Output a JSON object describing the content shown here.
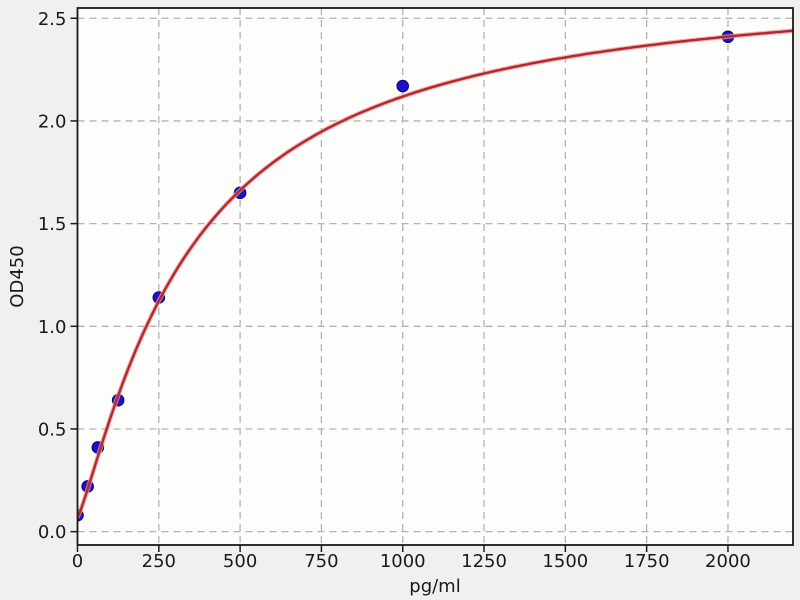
{
  "figure": {
    "background_color": "#f0f0ee",
    "plot_background_color": "#fdfdfc",
    "grid_color": "#b3b3b3",
    "spine_color": "#1a1a1a",
    "text_color": "#1a1a1a"
  },
  "chart_data": {
    "type": "scatter",
    "title": "",
    "xlabel": "pg/ml",
    "ylabel": "OD450",
    "xlim": [
      0,
      2200
    ],
    "ylim": [
      -0.065,
      2.55
    ],
    "x_ticks": [
      0,
      250,
      500,
      750,
      1000,
      1250,
      1500,
      1750,
      2000
    ],
    "x_tick_labels": [
      "0",
      "250",
      "500",
      "750",
      "1000",
      "1250",
      "1500",
      "1750",
      "2000"
    ],
    "y_ticks": [
      0,
      0.5,
      1,
      1.5,
      2,
      2.5
    ],
    "y_tick_labels": [
      "0.0",
      "0.5",
      "1.0",
      "1.5",
      "2.0",
      "2.5"
    ],
    "grid": true,
    "grid_style": "dashed",
    "legend_position": "none",
    "series": [
      {
        "name": "standard-points",
        "kind": "scatter",
        "marker": "circle",
        "marker_color": "#1a10cd",
        "marker_edge_color": "#10086e",
        "x": [
          0,
          31.25,
          62.5,
          125,
          250,
          500,
          1000,
          2000
        ],
        "y": [
          0.08,
          0.22,
          0.41,
          0.64,
          1.14,
          1.65,
          2.17,
          2.41
        ]
      },
      {
        "name": "4pl-fit-curve",
        "kind": "line",
        "line_color": "#b3282e",
        "halo_color": "#ef9a9a",
        "fit_4pl": {
          "a": 0.07,
          "b": 1.2,
          "c": 350,
          "d": 2.7
        },
        "x_range": [
          0,
          2200
        ]
      }
    ]
  }
}
